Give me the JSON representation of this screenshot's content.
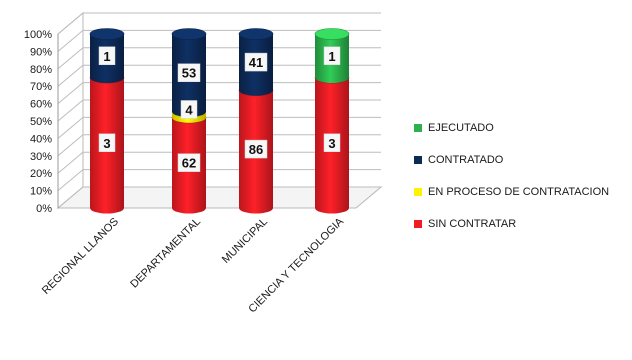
{
  "chart_data": {
    "type": "bar",
    "stacked": "percent",
    "categories": [
      "REGIONAL LLANOS",
      "DEPARTAMENTAL",
      "MUNICIPAL",
      "CIENCIA Y TECNOLOGIA"
    ],
    "series": [
      {
        "name": "SIN CONTRATAR",
        "color": "#ee1c24",
        "values": [
          3,
          62,
          86,
          3
        ]
      },
      {
        "name": "EN PROCESO DE CONTRATACION",
        "color": "#fff200",
        "values": [
          0,
          4,
          0,
          0
        ]
      },
      {
        "name": "CONTRATADO",
        "color": "#0d2a57",
        "values": [
          1,
          53,
          41,
          0
        ]
      },
      {
        "name": "EJECUTADO",
        "color": "#2bb24c",
        "values": [
          0,
          0,
          0,
          1
        ]
      }
    ],
    "y_ticks": [
      "0%",
      "10%",
      "20%",
      "30%",
      "40%",
      "50%",
      "60%",
      "70%",
      "80%",
      "90%",
      "100%"
    ],
    "ylim": [
      0,
      100
    ],
    "grid": true,
    "legend_position": "right",
    "legend_order": [
      "EJECUTADO",
      "CONTRATADO",
      "EN PROCESO DE CONTRATACION",
      "SIN CONTRATAR"
    ]
  }
}
